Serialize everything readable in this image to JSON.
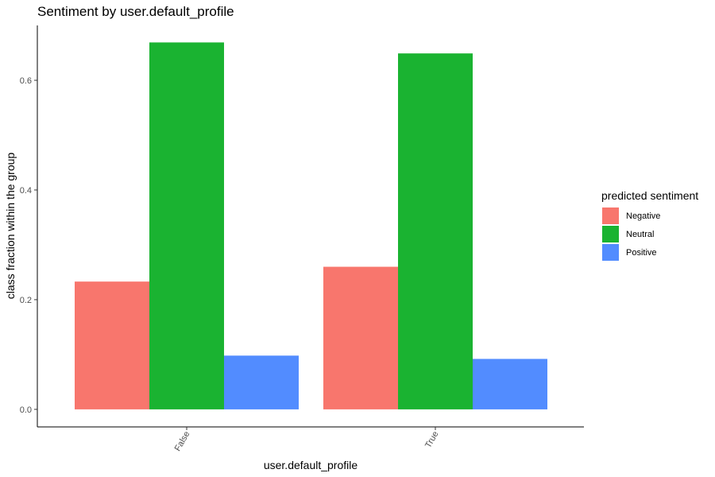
{
  "chart_data": {
    "type": "bar",
    "title": "Sentiment by user.default_profile",
    "xlabel": "user.default_profile",
    "ylabel": "class fraction within the group",
    "categories": [
      "False",
      "True"
    ],
    "series": [
      {
        "name": "Negative",
        "color": "#F8766D",
        "values": [
          0.233,
          0.26
        ]
      },
      {
        "name": "Neutral",
        "color": "#1AB331",
        "values": [
          0.669,
          0.649
        ]
      },
      {
        "name": "Positive",
        "color": "#528CFF",
        "values": [
          0.098,
          0.092
        ]
      }
    ],
    "ylim": [
      -0.032,
      0.7
    ],
    "yticks": [
      0.0,
      0.2,
      0.4,
      0.6
    ],
    "ytick_labels": [
      "0.0",
      "0.2",
      "0.4",
      "0.6"
    ],
    "legend": {
      "title": "predicted sentiment",
      "position": "right"
    },
    "grid": false
  }
}
